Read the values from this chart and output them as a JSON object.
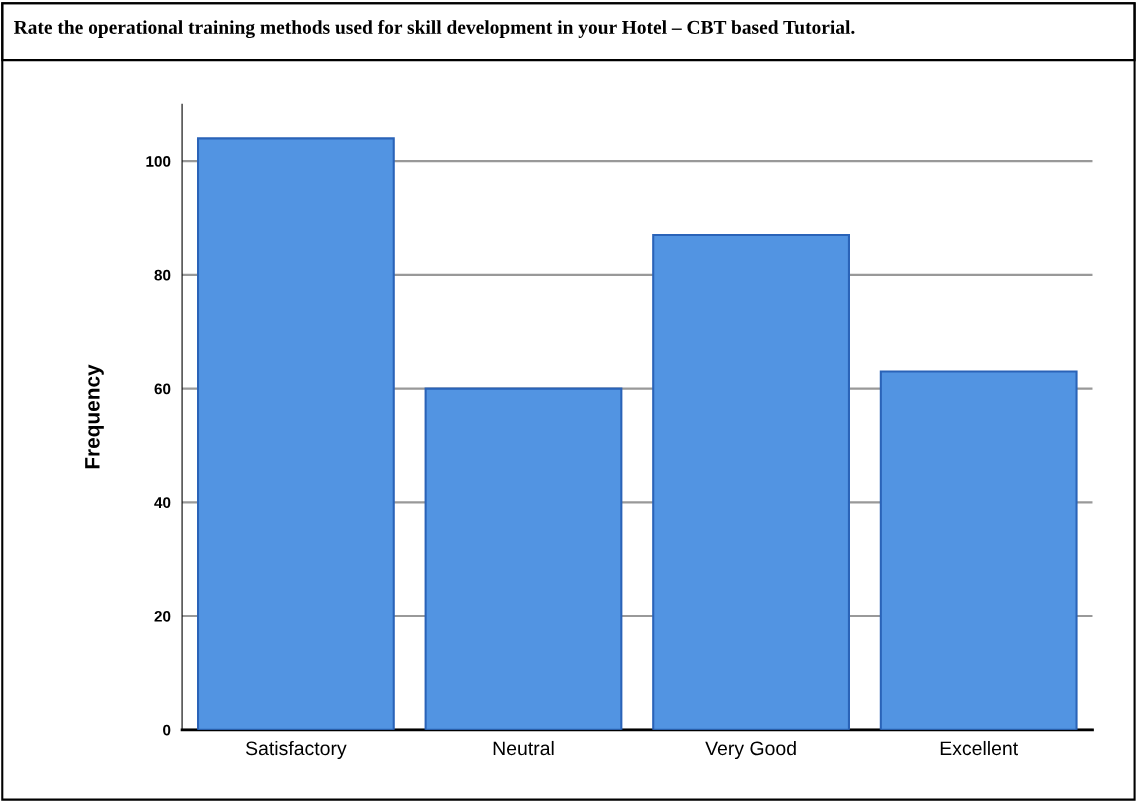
{
  "chart_data": {
    "type": "bar",
    "title": "Rate the operational training methods used for skill development in your Hotel – CBT based Tutorial.",
    "ylabel": "Frequency",
    "categories": [
      "Satisfactory",
      "Neutral",
      "Very Good",
      "Excellent"
    ],
    "values": [
      104,
      60,
      87,
      63
    ],
    "color": "#5294e2",
    "ylim": [
      0,
      110
    ],
    "yticks": [
      0,
      20,
      40,
      60,
      80,
      100
    ],
    "grid": "y"
  }
}
